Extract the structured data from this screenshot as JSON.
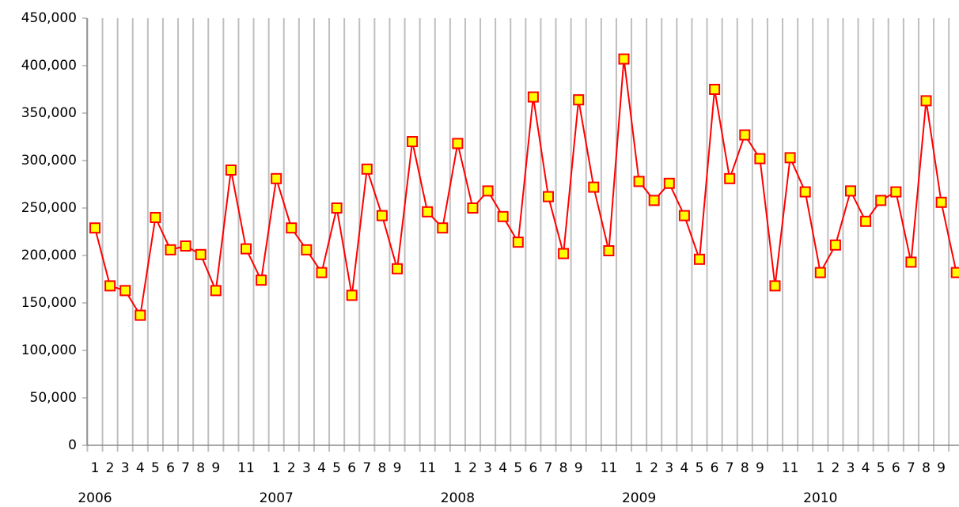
{
  "chart_data": {
    "type": "line",
    "categories": [
      "1",
      "2",
      "3",
      "4",
      "5",
      "6",
      "7",
      "8",
      "9",
      null,
      "11",
      null,
      "1",
      "2",
      "3",
      "4",
      "5",
      "6",
      "7",
      "8",
      "9",
      null,
      "11",
      null,
      "1",
      "2",
      "3",
      "4",
      "5",
      "6",
      "7",
      "8",
      "9",
      null,
      "11",
      null,
      "1",
      "2",
      "3",
      "4",
      "5",
      "6",
      "7",
      "8",
      "9",
      null,
      "11",
      null,
      "1",
      "2",
      "3",
      "4",
      "5",
      "6",
      "7",
      "8",
      "9",
      null
    ],
    "years": [
      "2006",
      "2007",
      "2008",
      "2009",
      "2010"
    ],
    "series": [
      {
        "color": "#ff0000",
        "marker_color": "#ffff00",
        "values": [
          229000,
          168000,
          163000,
          137000,
          240000,
          206000,
          210000,
          201000,
          163000,
          290000,
          207000,
          174000,
          281000,
          229000,
          206000,
          182000,
          250000,
          158000,
          291000,
          242000,
          186000,
          320000,
          246000,
          229000,
          318000,
          250000,
          268000,
          241000,
          214000,
          367000,
          262000,
          202000,
          364000,
          272000,
          205000,
          407000,
          278000,
          258000,
          276000,
          242000,
          196000,
          375000,
          281000,
          327000,
          302000,
          168000,
          303000,
          267000,
          182000,
          211000,
          268000,
          236000,
          258000,
          267000,
          193000,
          363000,
          256000,
          182000
        ]
      }
    ],
    "ylim": [
      0,
      450000
    ],
    "yticks": [
      0,
      {
        "value": 50000,
        "label": "50,000"
      },
      {
        "value": 100000,
        "label": "100,000"
      },
      {
        "value": 150000,
        "label": "150,000"
      },
      {
        "value": 200000,
        "label": "200,000"
      },
      {
        "value": 250000,
        "label": "250,000"
      },
      {
        "value": 300000,
        "label": "300,000"
      },
      {
        "value": 350000,
        "label": "350,000"
      },
      {
        "value": 400000,
        "label": "400,000"
      },
      {
        "value": 450000,
        "label": "450,000"
      }
    ],
    "grid": true
  }
}
